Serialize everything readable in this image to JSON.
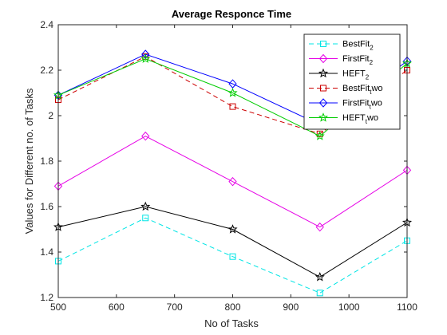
{
  "chart_data": {
    "type": "line",
    "title": "Average Responce Time",
    "xlabel": "No of Tasks",
    "ylabel": "Values for Different no. of Tasks",
    "x": [
      500,
      650,
      800,
      950,
      1100
    ],
    "xlim": [
      500,
      1100
    ],
    "ylim": [
      1.2,
      2.4
    ],
    "xticks": [
      "500",
      "600",
      "700",
      "800",
      "900",
      "1000",
      "1100"
    ],
    "yticks": [
      "1.2",
      "1.4",
      "1.6",
      "1.8",
      "2",
      "2.2",
      "2.4"
    ],
    "grid": false,
    "legend_position": "top-right",
    "series": [
      {
        "name": "BestFit",
        "sub": "2",
        "tail": "",
        "color": "#00e5e5",
        "dash": "dashed",
        "marker": "square",
        "values": [
          1.36,
          1.55,
          1.38,
          1.22,
          1.45
        ]
      },
      {
        "name": "FirstFit",
        "sub": "2",
        "tail": "",
        "color": "#e600e6",
        "dash": "solid",
        "marker": "diamond",
        "values": [
          1.69,
          1.91,
          1.71,
          1.51,
          1.76
        ]
      },
      {
        "name": "HEFT",
        "sub": "2",
        "tail": "",
        "color": "#000000",
        "dash": "solid",
        "marker": "star",
        "values": [
          1.51,
          1.6,
          1.5,
          1.29,
          1.53
        ]
      },
      {
        "name": "BestFit",
        "sub": "t",
        "tail": "wo",
        "color": "#cc0000",
        "dash": "dashed",
        "marker": "square",
        "values": [
          2.07,
          2.26,
          2.04,
          1.92,
          2.2
        ]
      },
      {
        "name": "FirstFit",
        "sub": "t",
        "tail": "wo",
        "color": "#0000ff",
        "dash": "solid",
        "marker": "diamond",
        "values": [
          2.09,
          2.27,
          2.14,
          1.96,
          2.24
        ]
      },
      {
        "name": "HEFT",
        "sub": "t",
        "tail": "wo",
        "color": "#00cc00",
        "dash": "solid",
        "marker": "star",
        "values": [
          2.09,
          2.25,
          2.1,
          1.91,
          2.23
        ]
      }
    ]
  }
}
